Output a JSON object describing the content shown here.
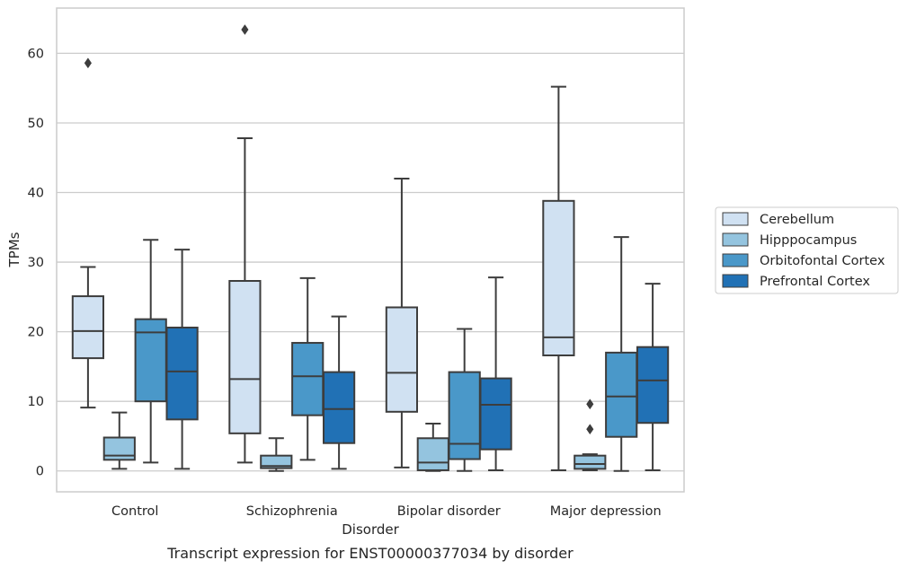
{
  "chart_data": {
    "type": "box",
    "caption": "Transcript expression for ENST00000377034 by disorder",
    "xlabel": "Disorder",
    "ylabel": "TPMs",
    "ylim": [
      -3,
      66.5
    ],
    "yticks": [
      0,
      10,
      20,
      30,
      40,
      50,
      60
    ],
    "grid": "horizontal",
    "legend_placement": "right",
    "categories": [
      "Control",
      "Schizophrenia",
      "Bipolar disorder",
      "Major depression"
    ],
    "series": [
      {
        "name": "Cerebellum",
        "color": "#d0e1f2",
        "boxes": [
          {
            "whisker_low": 9.1,
            "q1": 16.2,
            "median": 20.1,
            "q3": 25.1,
            "whisker_high": 29.3,
            "outliers": [
              58.6
            ]
          },
          {
            "whisker_low": 1.2,
            "q1": 5.4,
            "median": 13.2,
            "q3": 27.3,
            "whisker_high": 47.8,
            "outliers": [
              63.4
            ]
          },
          {
            "whisker_low": 0.5,
            "q1": 8.5,
            "median": 14.1,
            "q3": 23.5,
            "whisker_high": 42.0,
            "outliers": []
          },
          {
            "whisker_low": 0.1,
            "q1": 16.6,
            "median": 19.2,
            "q3": 38.8,
            "whisker_high": 55.2,
            "outliers": []
          }
        ]
      },
      {
        "name": "Hipppocampus",
        "color": "#94c4df",
        "boxes": [
          {
            "whisker_low": 0.3,
            "q1": 1.6,
            "median": 2.2,
            "q3": 4.8,
            "whisker_high": 8.4,
            "outliers": []
          },
          {
            "whisker_low": 0.0,
            "q1": 0.4,
            "median": 0.7,
            "q3": 2.2,
            "whisker_high": 4.7,
            "outliers": []
          },
          {
            "whisker_low": 0.0,
            "q1": 0.1,
            "median": 1.2,
            "q3": 4.7,
            "whisker_high": 6.8,
            "outliers": []
          },
          {
            "whisker_low": 0.1,
            "q1": 0.3,
            "median": 1.0,
            "q3": 2.2,
            "whisker_high": 2.4,
            "outliers": [
              9.6,
              6.0
            ]
          }
        ]
      },
      {
        "name": "Orbitofontal Cortex",
        "color": "#4a98c9",
        "boxes": [
          {
            "whisker_low": 1.2,
            "q1": 10.0,
            "median": 19.9,
            "q3": 21.8,
            "whisker_high": 33.2,
            "outliers": []
          },
          {
            "whisker_low": 1.6,
            "q1": 8.0,
            "median": 13.6,
            "q3": 18.4,
            "whisker_high": 27.7,
            "outliers": []
          },
          {
            "whisker_low": 0.0,
            "q1": 1.7,
            "median": 3.9,
            "q3": 14.2,
            "whisker_high": 20.4,
            "outliers": []
          },
          {
            "whisker_low": 0.0,
            "q1": 4.9,
            "median": 10.7,
            "q3": 17.0,
            "whisker_high": 33.6,
            "outliers": []
          }
        ]
      },
      {
        "name": "Prefrontal Cortex",
        "color": "#2171b5",
        "boxes": [
          {
            "whisker_low": 0.3,
            "q1": 7.4,
            "median": 14.3,
            "q3": 20.6,
            "whisker_high": 31.8,
            "outliers": []
          },
          {
            "whisker_low": 0.3,
            "q1": 4.0,
            "median": 8.9,
            "q3": 14.2,
            "whisker_high": 22.2,
            "outliers": []
          },
          {
            "whisker_low": 0.1,
            "q1": 3.1,
            "median": 9.5,
            "q3": 13.3,
            "whisker_high": 27.8,
            "outliers": []
          },
          {
            "whisker_low": 0.1,
            "q1": 6.9,
            "median": 13.0,
            "q3": 17.8,
            "whisker_high": 26.9,
            "outliers": []
          }
        ]
      }
    ]
  }
}
